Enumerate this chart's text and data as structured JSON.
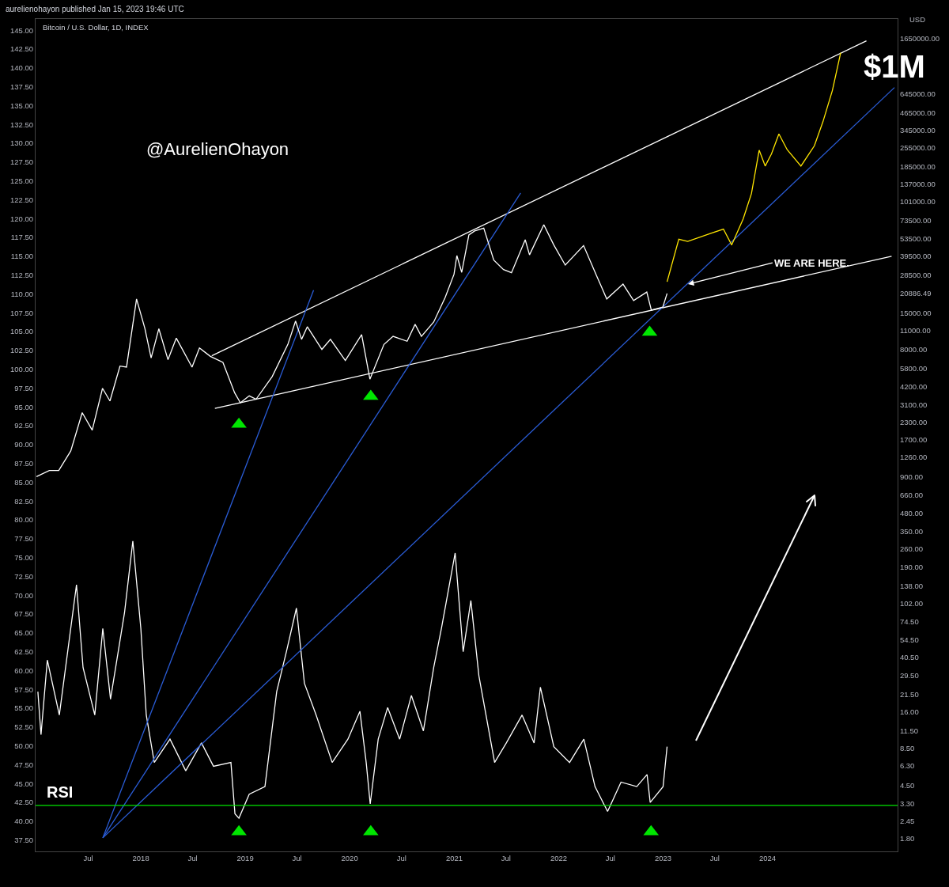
{
  "chart_data": {
    "type": "line",
    "title": "Bitcoin / U.S. Dollar, 1D, INDEX",
    "y2label": "USD",
    "annotations": [
      "aurelienohayon published Jan 15, 2023 19:46 UTC",
      "@AurelienOhayon",
      "$1M",
      {
        "text": "WE ARE HERE.",
        "x": "2023-03-29",
        "y": 111.3
      },
      "RSI"
    ],
    "log": "y2",
    "grid": false,
    "xlim": [
      "2016-12-29",
      "2025-03-31"
    ],
    "xticks": [
      {
        "value": "2017-07-01",
        "label": "Jul"
      },
      {
        "value": "2018-01-01",
        "label": "2018"
      },
      {
        "value": "2018-07-01",
        "label": "Jul"
      },
      {
        "value": "2019-01-01",
        "label": "2019"
      },
      {
        "value": "2019-07-01",
        "label": "Jul"
      },
      {
        "value": "2020-01-01",
        "label": "2020"
      },
      {
        "value": "2020-07-01",
        "label": "Jul"
      },
      {
        "value": "2021-01-01",
        "label": "2021"
      },
      {
        "value": "2021-07-01",
        "label": "Jul"
      },
      {
        "value": "2022-01-01",
        "label": "2022"
      },
      {
        "value": "2022-07-01",
        "label": "Jul"
      },
      {
        "value": "2023-01-01",
        "label": "2023"
      },
      {
        "value": "2023-07-01",
        "label": "Jul"
      },
      {
        "value": "2024-01-01",
        "label": "2024"
      }
    ],
    "ylim": [
      36.0,
      146.5
    ],
    "yticks": [
      {
        "value": 37.5,
        "label": "37.50"
      },
      {
        "value": 40,
        "label": "40.00"
      },
      {
        "value": 42.5,
        "label": "42.50"
      },
      {
        "value": 45,
        "label": "45.00"
      },
      {
        "value": 47.5,
        "label": "47.50"
      },
      {
        "value": 50,
        "label": "50.00"
      },
      {
        "value": 52.5,
        "label": "52.50"
      },
      {
        "value": 55,
        "label": "55.00"
      },
      {
        "value": 57.5,
        "label": "57.50"
      },
      {
        "value": 60,
        "label": "60.00"
      },
      {
        "value": 62.5,
        "label": "62.50"
      },
      {
        "value": 65,
        "label": "65.00"
      },
      {
        "value": 67.5,
        "label": "67.50"
      },
      {
        "value": 70,
        "label": "70.00"
      },
      {
        "value": 72.5,
        "label": "72.50"
      },
      {
        "value": 75,
        "label": "75.00"
      },
      {
        "value": 77.5,
        "label": "77.50"
      },
      {
        "value": 80,
        "label": "80.00"
      },
      {
        "value": 82.5,
        "label": "82.50"
      },
      {
        "value": 85,
        "label": "85.00"
      },
      {
        "value": 87.5,
        "label": "87.50"
      },
      {
        "value": 90,
        "label": "90.00"
      },
      {
        "value": 92.5,
        "label": "92.50"
      },
      {
        "value": 95,
        "label": "95.00"
      },
      {
        "value": 97.5,
        "label": "97.50"
      },
      {
        "value": 100,
        "label": "100.00"
      },
      {
        "value": 102.5,
        "label": "102.50"
      },
      {
        "value": 105,
        "label": "105.00"
      },
      {
        "value": 107.5,
        "label": "107.50"
      },
      {
        "value": 110,
        "label": "110.00"
      },
      {
        "value": 112.5,
        "label": "112.50"
      },
      {
        "value": 115,
        "label": "115.00"
      },
      {
        "value": 117.5,
        "label": "117.50"
      },
      {
        "value": 120,
        "label": "120.00"
      },
      {
        "value": 122.5,
        "label": "122.50"
      },
      {
        "value": 125,
        "label": "125.00"
      },
      {
        "value": 127.5,
        "label": "127.50"
      },
      {
        "value": 130,
        "label": "130.00"
      },
      {
        "value": 132.5,
        "label": "132.50"
      },
      {
        "value": 135,
        "label": "135.00"
      },
      {
        "value": 137.5,
        "label": "137.50"
      },
      {
        "value": 140,
        "label": "140.00"
      },
      {
        "value": 142.5,
        "label": "142.50"
      },
      {
        "value": 145,
        "label": "145.00"
      }
    ],
    "y2lim": [
      1.45,
      2320000
    ],
    "y2ticks": [
      {
        "value": 1650000,
        "label": "1650000.00"
      },
      {
        "value": 645000,
        "label": "645000.00"
      },
      {
        "value": 465000,
        "label": "465000.00"
      },
      {
        "value": 345000,
        "label": "345000.00"
      },
      {
        "value": 255000,
        "label": "255000.00"
      },
      {
        "value": 185000,
        "label": "185000.00"
      },
      {
        "value": 137000,
        "label": "137000.00"
      },
      {
        "value": 101000,
        "label": "101000.00"
      },
      {
        "value": 73500,
        "label": "73500.00"
      },
      {
        "value": 53500,
        "label": "53500.00"
      },
      {
        "value": 39500,
        "label": "39500.00"
      },
      {
        "value": 28500,
        "label": "28500.00"
      },
      {
        "value": 20886.49,
        "label": "20886.49"
      },
      {
        "value": 15000,
        "label": "15000.00"
      },
      {
        "value": 11000,
        "label": "11000.00"
      },
      {
        "value": 8000,
        "label": "8000.00"
      },
      {
        "value": 5800,
        "label": "5800.00"
      },
      {
        "value": 4200,
        "label": "4200.00"
      },
      {
        "value": 3100,
        "label": "3100.00"
      },
      {
        "value": 2300,
        "label": "2300.00"
      },
      {
        "value": 1700,
        "label": "1700.00"
      },
      {
        "value": 1260,
        "label": "1260.00"
      },
      {
        "value": 900,
        "label": "900.00"
      },
      {
        "value": 660,
        "label": "660.00"
      },
      {
        "value": 480,
        "label": "480.00"
      },
      {
        "value": 350,
        "label": "350.00"
      },
      {
        "value": 260,
        "label": "260.00"
      },
      {
        "value": 190,
        "label": "190.00"
      },
      {
        "value": 138,
        "label": "138.00"
      },
      {
        "value": 102,
        "label": "102.00"
      },
      {
        "value": 74.5,
        "label": "74.50"
      },
      {
        "value": 54.5,
        "label": "54.50"
      },
      {
        "value": 40.5,
        "label": "40.50"
      },
      {
        "value": 29.5,
        "label": "29.50"
      },
      {
        "value": 21.5,
        "label": "21.50"
      },
      {
        "value": 16,
        "label": "16.00"
      },
      {
        "value": 11.5,
        "label": "11.50"
      },
      {
        "value": 8.5,
        "label": "8.50"
      },
      {
        "value": 6.3,
        "label": "6.30"
      },
      {
        "value": 4.5,
        "label": "4.50"
      },
      {
        "value": 3.3,
        "label": "3.30"
      },
      {
        "value": 2.45,
        "label": "2.45"
      },
      {
        "value": 1.8,
        "label": "1.80"
      }
    ],
    "ref_lines": [
      {
        "axis": "y",
        "value": 42.1,
        "color": "#00e600"
      }
    ],
    "series": [
      {
        "type": "line",
        "axis": "y2",
        "color": "#ffffff",
        "x": [
          "2017-01-01",
          "2017-02-15",
          "2017-03-20",
          "2017-05-01",
          "2017-06-10",
          "2017-07-15",
          "2017-08-20",
          "2017-09-15",
          "2017-10-20",
          "2017-11-12",
          "2017-12-17",
          "2018-01-15",
          "2018-02-06",
          "2018-03-05",
          "2018-04-06",
          "2018-05-05",
          "2018-06-29",
          "2018-07-25",
          "2018-09-01",
          "2018-10-15",
          "2018-11-25",
          "2018-12-15",
          "2019-01-15",
          "2019-02-08",
          "2019-04-05",
          "2019-05-30",
          "2019-06-26",
          "2019-07-17",
          "2019-08-06",
          "2019-09-26",
          "2019-10-26",
          "2019-12-17",
          "2020-02-12",
          "2020-03-12",
          "2020-04-30",
          "2020-06-01",
          "2020-07-20",
          "2020-08-17",
          "2020-09-08",
          "2020-10-21",
          "2020-11-30",
          "2020-12-31",
          "2021-01-10",
          "2021-01-27",
          "2021-02-21",
          "2021-03-13",
          "2021-04-14",
          "2021-05-19",
          "2021-06-22",
          "2021-07-20",
          "2021-09-06",
          "2021-09-21",
          "2021-11-10",
          "2021-12-15",
          "2022-01-24",
          "2022-03-29",
          "2022-05-12",
          "2022-06-18",
          "2022-08-14",
          "2022-09-20",
          "2022-11-05",
          "2022-11-21",
          "2022-12-31",
          "2023-01-15"
        ],
        "values": [
          900,
          1000,
          1000,
          1400,
          2700,
          2000,
          4100,
          3300,
          6000,
          5900,
          19000,
          11500,
          6900,
          11400,
          6700,
          9700,
          5900,
          8200,
          7100,
          6400,
          3800,
          3200,
          3600,
          3400,
          5000,
          8700,
          13000,
          9500,
          11800,
          8000,
          9500,
          6600,
          10300,
          4800,
          8700,
          10000,
          9200,
          12300,
          10000,
          12800,
          19500,
          29000,
          40000,
          30000,
          57000,
          61000,
          64000,
          37000,
          31500,
          29800,
          52500,
          40500,
          68000,
          48000,
          34000,
          47500,
          28800,
          19000,
          24500,
          18500,
          21400,
          15700,
          16500,
          20886
        ]
      },
      {
        "type": "line",
        "axis": "y2",
        "color": "#ffe600",
        "x": [
          "2023-01-15",
          "2023-02-25",
          "2023-03-28",
          "2023-06-21",
          "2023-07-31",
          "2023-08-29",
          "2023-10-08",
          "2023-11-06",
          "2023-12-03",
          "2023-12-24",
          "2024-01-15",
          "2024-02-10",
          "2024-03-10",
          "2024-04-27",
          "2024-06-13",
          "2024-07-13",
          "2024-08-15",
          "2024-09-13"
        ],
        "values": [
          25500,
          53000,
          51000,
          59000,
          63000,
          48000,
          75000,
          116000,
          244000,
          186000,
          229000,
          323000,
          246000,
          186000,
          263000,
          398000,
          680000,
          1300000
        ]
      },
      {
        "type": "line",
        "color": "#ffffff",
        "x": [
          "2017-01-06",
          "2017-01-17",
          "2017-02-08",
          "2017-03-22",
          "2017-05-21",
          "2017-06-13",
          "2017-07-24",
          "2017-08-21",
          "2017-09-17",
          "2017-11-05",
          "2017-12-04",
          "2018-01-01",
          "2018-01-20",
          "2018-02-17",
          "2018-04-13",
          "2018-06-07",
          "2018-08-01",
          "2018-09-12",
          "2018-11-12",
          "2018-11-26",
          "2018-12-10",
          "2019-01-15",
          "2019-03-11",
          "2019-04-21",
          "2019-05-25",
          "2019-06-29",
          "2019-07-27",
          "2019-09-06",
          "2019-11-01",
          "2019-12-26",
          "2020-02-06",
          "2020-02-28",
          "2020-03-13",
          "2020-04-10",
          "2020-05-13",
          "2020-06-24",
          "2020-08-04",
          "2020-09-15",
          "2020-10-21",
          "2020-11-17",
          "2021-01-04",
          "2021-02-01",
          "2021-02-28",
          "2021-03-28",
          "2021-05-22",
          "2021-07-02",
          "2021-08-26",
          "2021-10-07",
          "2021-10-29",
          "2021-12-15",
          "2022-02-08",
          "2022-03-30",
          "2022-05-08",
          "2022-06-21",
          "2022-08-07",
          "2022-10-01",
          "2022-11-06",
          "2022-11-17",
          "2023-01-01",
          "2023-01-15"
        ],
        "values": [
          57.2,
          51.5,
          61.4,
          54.1,
          71.4,
          60.4,
          54.1,
          65.6,
          56.2,
          67.7,
          77.2,
          65.6,
          54.1,
          47.8,
          50.9,
          46.7,
          50.4,
          47.3,
          47.8,
          41.0,
          40.4,
          43.6,
          44.6,
          57.2,
          62.5,
          68.3,
          58.3,
          54.1,
          47.8,
          50.9,
          54.6,
          47.8,
          42.3,
          50.9,
          55.1,
          50.9,
          56.7,
          52.0,
          60.4,
          65.6,
          75.6,
          62.5,
          69.3,
          59.3,
          47.8,
          50.4,
          54.1,
          50.4,
          57.8,
          49.9,
          47.8,
          50.9,
          44.6,
          41.3,
          45.2,
          44.6,
          46.2,
          42.5,
          44.6,
          49.9
        ]
      },
      {
        "type": "line",
        "color": "#ffffff",
        "x": [
          "2018-09-06",
          "2024-12-12"
        ],
        "values": [
          101.8,
          143.6
        ]
      },
      {
        "type": "line",
        "color": "#ffffff",
        "x": [
          "2018-09-17",
          "2025-03-10"
        ],
        "values": [
          94.8,
          115.0
        ]
      },
      {
        "type": "line",
        "color": "#2a5cd6",
        "x": [
          "2017-08-21",
          "2019-08-28"
        ],
        "values": [
          37.8,
          110.5
        ]
      },
      {
        "type": "line",
        "color": "#2a5cd6",
        "x": [
          "2017-08-21",
          "2021-08-21"
        ],
        "values": [
          37.8,
          123.4
        ]
      },
      {
        "type": "line",
        "color": "#2a5cd6",
        "x": [
          "2017-08-21",
          "2025-03-20"
        ],
        "values": [
          37.8,
          137.4
        ]
      },
      {
        "type": "scatter",
        "marker": "triangle",
        "color": "#00e600",
        "x": [
          "2018-12-10",
          "2020-03-15",
          "2022-11-15",
          "2018-12-10",
          "2020-03-15",
          "2022-11-20"
        ],
        "values": [
          92.7,
          96.4,
          104.9,
          38.6,
          38.6,
          38.6
        ]
      }
    ]
  }
}
